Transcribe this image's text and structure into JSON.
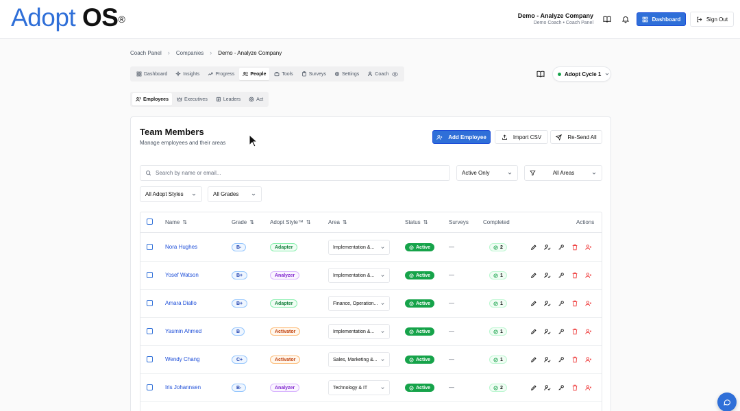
{
  "header": {
    "logo_adopt": "Adopt",
    "logo_os": "OS",
    "logo_reg": "®",
    "company_name": "Demo - Analyze Company",
    "company_sub": "Demo Coach • Coach Panel",
    "dashboard_label": "Dashboard",
    "signout_label": "Sign Out"
  },
  "breadcrumb": {
    "items": [
      "Coach Panel",
      "Companies",
      "Demo - Analyze Company"
    ],
    "separator": "›"
  },
  "tabs": [
    {
      "label": "Dashboard",
      "icon": "grid-icon"
    },
    {
      "label": "Insights",
      "icon": "sparkle-icon"
    },
    {
      "label": "Progress",
      "icon": "trend-icon"
    },
    {
      "label": "People",
      "icon": "users-icon",
      "active": true
    },
    {
      "label": "Tools",
      "icon": "toolbox-icon"
    },
    {
      "label": "Surveys",
      "icon": "clipboard-icon"
    },
    {
      "label": "Settings",
      "icon": "gear-icon"
    },
    {
      "label": "Coach",
      "icon": "coach-icon"
    }
  ],
  "subtabs": [
    {
      "label": "Employees",
      "icon": "users-icon",
      "active": true
    },
    {
      "label": "Executives",
      "icon": "crown-icon"
    },
    {
      "label": "Leaders",
      "icon": "leader-icon"
    },
    {
      "label": "Act",
      "icon": "target-icon"
    }
  ],
  "cycle": {
    "label": "Adopt Cycle 1"
  },
  "card": {
    "title": "Team Members",
    "subtitle": "Manage employees and their areas",
    "add_label": "Add Employee",
    "import_label": "Import CSV",
    "resend_label": "Re-Send All"
  },
  "filters": {
    "search_placeholder": "Search by name or email...",
    "status": "Active Only",
    "areas": "All Areas",
    "styles": "All Adopt Styles",
    "grades": "All Grades"
  },
  "table": {
    "headers": {
      "name": "Name",
      "grade": "Grade",
      "style": "Adopt Style™",
      "area": "Area",
      "status": "Status",
      "surveys": "Surveys",
      "completed": "Completed",
      "actions": "Actions"
    },
    "rows": [
      {
        "name": "Nora Hughes",
        "grade": "B-",
        "style": "Adapter",
        "area": "Implementation &...",
        "status": "Active",
        "surveys": "—",
        "completed": "2"
      },
      {
        "name": "Yosef Watson",
        "grade": "B+",
        "style": "Analyzer",
        "area": "Implementation &...",
        "status": "Active",
        "surveys": "—",
        "completed": "1"
      },
      {
        "name": "Amara Diallo",
        "grade": "B+",
        "style": "Adapter",
        "area": "Finance, Operation...",
        "status": "Active",
        "surveys": "—",
        "completed": "1"
      },
      {
        "name": "Yasmin Ahmed",
        "grade": "B",
        "style": "Activator",
        "area": "Implementation &...",
        "status": "Active",
        "surveys": "—",
        "completed": "1"
      },
      {
        "name": "Wendy Chang",
        "grade": "C+",
        "style": "Activator",
        "area": "Sales, Marketing &...",
        "status": "Active",
        "surveys": "—",
        "completed": "1"
      },
      {
        "name": "Iris Johannsen",
        "grade": "B-",
        "style": "Analyzer",
        "area": "Technology & IT",
        "status": "Active",
        "surveys": "—",
        "completed": "2"
      }
    ]
  },
  "style_colors": {
    "Adapter": {
      "bg": "#f0fdf4",
      "border": "#86efac",
      "text": "#15803d"
    },
    "Analyzer": {
      "bg": "#faf5ff",
      "border": "#d8b4fe",
      "text": "#7e22ce"
    },
    "Activator": {
      "bg": "#fff7ed",
      "border": "#fdba74",
      "text": "#c2410c"
    }
  },
  "colors": {
    "accent": "#2f6fd8",
    "active": "#16a34a",
    "danger": "#ef4444"
  }
}
